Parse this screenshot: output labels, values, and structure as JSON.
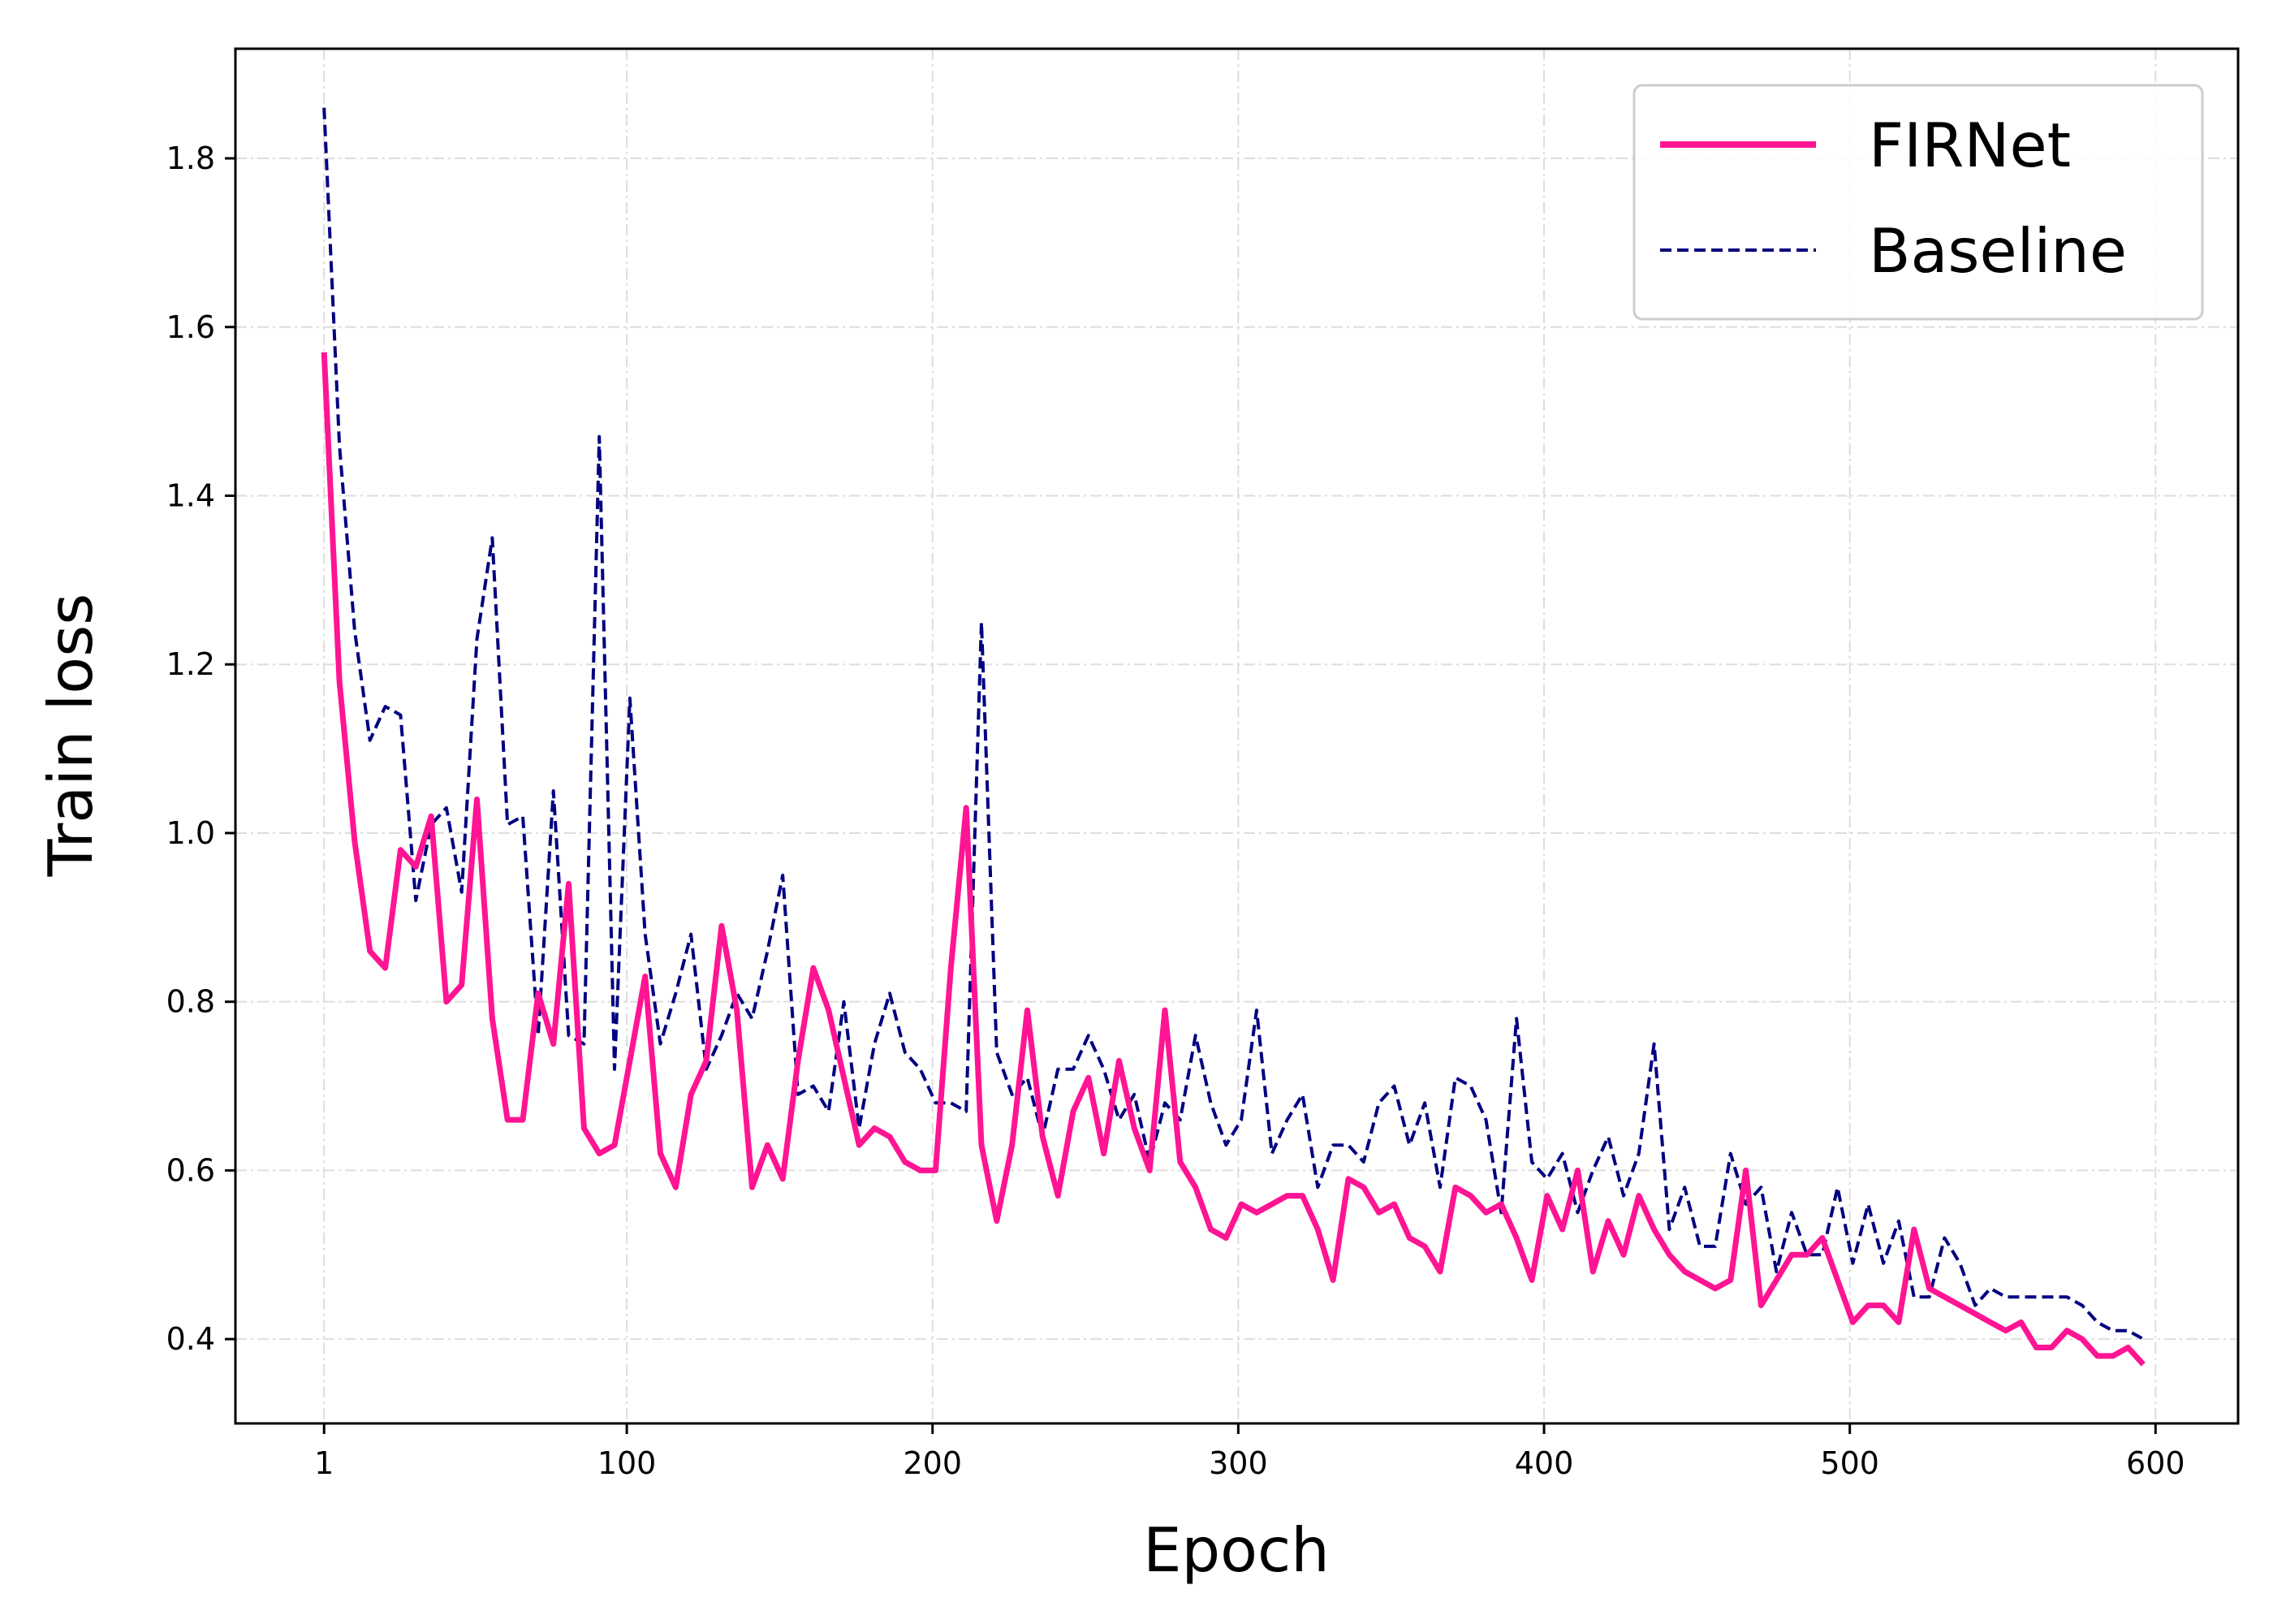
{
  "chart_data": {
    "type": "line",
    "title": "",
    "xlabel": "Epoch",
    "ylabel": "Train loss",
    "xlim": [
      -28,
      627
    ],
    "ylim": [
      0.3,
      1.93
    ],
    "xticks": [
      1,
      100,
      200,
      300,
      400,
      500,
      600
    ],
    "yticks": [
      0.4,
      0.6,
      0.8,
      1.0,
      1.2,
      1.4,
      1.6,
      1.8
    ],
    "ytick_labels": [
      "0.4",
      "0.6",
      "0.8",
      "1.0",
      "1.2",
      "1.4",
      "1.6",
      "1.8"
    ],
    "grid": true,
    "legend_position": "top-right",
    "series": [
      {
        "name": "FIRNet",
        "color": "#ff1493",
        "style": "solid",
        "x": [
          1,
          6,
          11,
          16,
          21,
          26,
          31,
          36,
          41,
          46,
          51,
          56,
          61,
          66,
          71,
          76,
          81,
          86,
          91,
          96,
          101,
          106,
          111,
          116,
          121,
          126,
          131,
          136,
          141,
          146,
          151,
          156,
          161,
          166,
          171,
          176,
          181,
          186,
          191,
          196,
          201,
          206,
          211,
          216,
          221,
          226,
          231,
          236,
          241,
          246,
          251,
          256,
          261,
          266,
          271,
          276,
          281,
          286,
          291,
          296,
          301,
          306,
          311,
          316,
          321,
          326,
          331,
          336,
          341,
          346,
          351,
          356,
          361,
          366,
          371,
          376,
          381,
          386,
          391,
          396,
          401,
          406,
          411,
          416,
          421,
          426,
          431,
          436,
          441,
          446,
          451,
          456,
          461,
          466,
          471,
          476,
          481,
          486,
          491,
          496,
          501,
          506,
          511,
          516,
          521,
          526,
          531,
          536,
          541,
          546,
          551,
          556,
          561,
          566,
          571,
          576,
          581,
          586,
          591,
          596
        ],
        "values": [
          1.57,
          1.18,
          0.99,
          0.86,
          0.84,
          0.98,
          0.96,
          1.02,
          0.8,
          0.82,
          1.04,
          0.78,
          0.66,
          0.66,
          0.81,
          0.75,
          0.94,
          0.65,
          0.62,
          0.63,
          0.73,
          0.83,
          0.62,
          0.58,
          0.69,
          0.73,
          0.89,
          0.79,
          0.58,
          0.63,
          0.59,
          0.73,
          0.84,
          0.79,
          0.71,
          0.63,
          0.65,
          0.64,
          0.61,
          0.6,
          0.6,
          0.84,
          1.03,
          0.63,
          0.54,
          0.63,
          0.79,
          0.64,
          0.57,
          0.67,
          0.71,
          0.62,
          0.73,
          0.65,
          0.6,
          0.79,
          0.61,
          0.58,
          0.53,
          0.52,
          0.56,
          0.55,
          0.56,
          0.57,
          0.57,
          0.53,
          0.47,
          0.59,
          0.58,
          0.55,
          0.56,
          0.52,
          0.51,
          0.48,
          0.58,
          0.57,
          0.55,
          0.56,
          0.52,
          0.47,
          0.57,
          0.53,
          0.6,
          0.48,
          0.54,
          0.5,
          0.57,
          0.53,
          0.5,
          0.48,
          0.47,
          0.46,
          0.47,
          0.6,
          0.44,
          0.47,
          0.5,
          0.5,
          0.52,
          0.47,
          0.42,
          0.44,
          0.44,
          0.42,
          0.53,
          0.46,
          0.45,
          0.44,
          0.43,
          0.42,
          0.41,
          0.42,
          0.39,
          0.39,
          0.41,
          0.4,
          0.38,
          0.38,
          0.39,
          0.37
        ]
      },
      {
        "name": "Baseline",
        "color": "#000080",
        "style": "dashed",
        "x": [
          1,
          6,
          11,
          16,
          21,
          26,
          31,
          36,
          41,
          46,
          51,
          56,
          61,
          66,
          71,
          76,
          81,
          86,
          91,
          96,
          101,
          106,
          111,
          116,
          121,
          126,
          131,
          136,
          141,
          146,
          151,
          156,
          161,
          166,
          171,
          176,
          181,
          186,
          191,
          196,
          201,
          206,
          211,
          216,
          221,
          226,
          231,
          236,
          241,
          246,
          251,
          256,
          261,
          266,
          271,
          276,
          281,
          286,
          291,
          296,
          301,
          306,
          311,
          316,
          321,
          326,
          331,
          336,
          341,
          346,
          351,
          356,
          361,
          366,
          371,
          376,
          381,
          386,
          391,
          396,
          401,
          406,
          411,
          416,
          421,
          426,
          431,
          436,
          441,
          446,
          451,
          456,
          461,
          466,
          471,
          476,
          481,
          486,
          491,
          496,
          501,
          506,
          511,
          516,
          521,
          526,
          531,
          536,
          541,
          546,
          551,
          556,
          561,
          566,
          571,
          576,
          581,
          586,
          591,
          596
        ],
        "values": [
          1.86,
          1.46,
          1.24,
          1.11,
          1.15,
          1.14,
          0.92,
          1.01,
          1.03,
          0.93,
          1.23,
          1.35,
          1.01,
          1.02,
          0.76,
          1.05,
          0.76,
          0.75,
          1.47,
          0.72,
          1.16,
          0.88,
          0.75,
          0.81,
          0.88,
          0.72,
          0.76,
          0.81,
          0.78,
          0.86,
          0.95,
          0.69,
          0.7,
          0.67,
          0.8,
          0.65,
          0.75,
          0.81,
          0.74,
          0.72,
          0.68,
          0.68,
          0.67,
          1.25,
          0.74,
          0.69,
          0.71,
          0.64,
          0.72,
          0.72,
          0.76,
          0.72,
          0.66,
          0.69,
          0.61,
          0.68,
          0.66,
          0.76,
          0.68,
          0.63,
          0.66,
          0.79,
          0.62,
          0.66,
          0.69,
          0.58,
          0.63,
          0.63,
          0.61,
          0.68,
          0.7,
          0.63,
          0.68,
          0.58,
          0.71,
          0.7,
          0.66,
          0.55,
          0.78,
          0.61,
          0.59,
          0.62,
          0.55,
          0.6,
          0.64,
          0.57,
          0.62,
          0.75,
          0.53,
          0.58,
          0.51,
          0.51,
          0.62,
          0.56,
          0.58,
          0.48,
          0.55,
          0.5,
          0.5,
          0.58,
          0.49,
          0.56,
          0.49,
          0.54,
          0.45,
          0.45,
          0.52,
          0.49,
          0.44,
          0.46,
          0.45,
          0.45,
          0.45,
          0.45,
          0.45,
          0.44,
          0.42,
          0.41,
          0.41,
          0.4
        ]
      }
    ]
  }
}
